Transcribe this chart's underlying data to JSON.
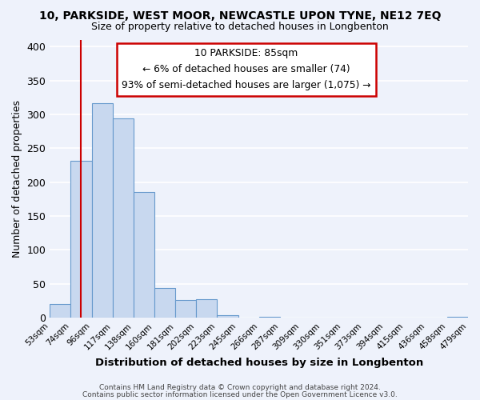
{
  "title": "10, PARKSIDE, WEST MOOR, NEWCASTLE UPON TYNE, NE12 7EQ",
  "subtitle": "Size of property relative to detached houses in Longbenton",
  "xlabel": "Distribution of detached houses by size in Longbenton",
  "ylabel": "Number of detached properties",
  "bar_values": [
    20,
    232,
    317,
    294,
    185,
    44,
    26,
    27,
    3,
    0,
    1,
    0,
    0,
    0,
    0,
    0,
    0,
    0,
    0,
    1
  ],
  "bin_labels": [
    "53sqm",
    "74sqm",
    "96sqm",
    "117sqm",
    "138sqm",
    "160sqm",
    "181sqm",
    "202sqm",
    "223sqm",
    "245sqm",
    "266sqm",
    "287sqm",
    "309sqm",
    "330sqm",
    "351sqm",
    "373sqm",
    "394sqm",
    "415sqm",
    "436sqm",
    "458sqm",
    "479sqm"
  ],
  "bar_color": "#c8d8ef",
  "bar_edge_color": "#6699cc",
  "vline_x": 1.5,
  "vline_color": "#cc0000",
  "annotation_title": "10 PARKSIDE: 85sqm",
  "annotation_line1": "← 6% of detached houses are smaller (74)",
  "annotation_line2": "93% of semi-detached houses are larger (1,075) →",
  "ylim": [
    0,
    410
  ],
  "yticks": [
    0,
    50,
    100,
    150,
    200,
    250,
    300,
    350,
    400
  ],
  "footer_line1": "Contains HM Land Registry data © Crown copyright and database right 2024.",
  "footer_line2": "Contains public sector information licensed under the Open Government Licence v3.0.",
  "bg_color": "#eef2fb",
  "grid_color": "#ffffff"
}
